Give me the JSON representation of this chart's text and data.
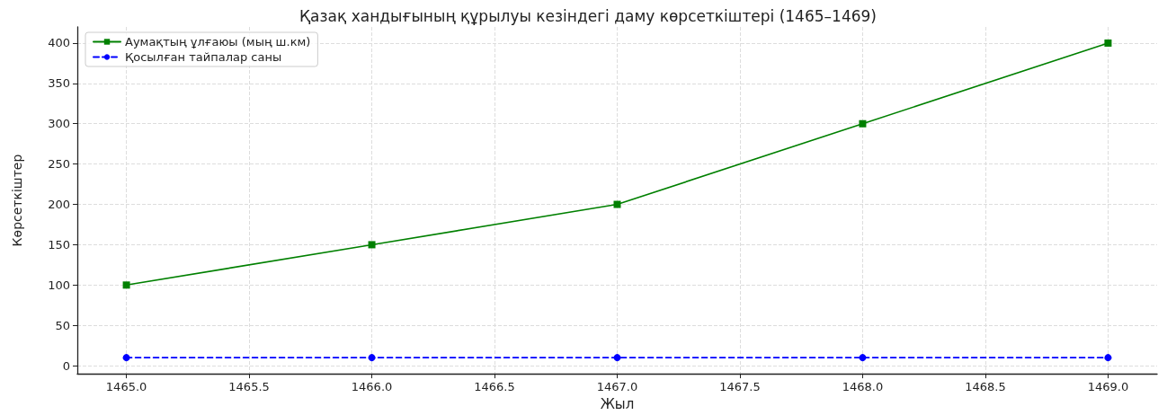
{
  "chart_data": {
    "type": "line",
    "title": "Қазақ хандығының құрылуы кезіндегі даму көрсеткіштері (1465–1469)",
    "xlabel": "Жыл",
    "ylabel": "Көрсеткіштер",
    "x": [
      1465,
      1466,
      1467,
      1468,
      1469
    ],
    "series": [
      {
        "name": "Аумақтың ұлғаюы (мың ш.км)",
        "color": "#008000",
        "values": [
          100,
          150,
          200,
          300,
          400
        ],
        "marker": "square",
        "line_style": "solid"
      },
      {
        "name": "Қосылған тайпалар саны",
        "color": "#0000ff",
        "values": [
          10,
          10,
          10,
          10,
          10
        ],
        "marker": "circle",
        "line_style": "dashed"
      }
    ],
    "xlim": [
      1464.8,
      1469.2
    ],
    "xticks": [
      {
        "value": 1465,
        "label": "1465.0"
      },
      {
        "value": 1465.5,
        "label": "1465.5"
      },
      {
        "value": 1466,
        "label": "1466.0"
      },
      {
        "value": 1466.5,
        "label": "1466.5"
      },
      {
        "value": 1467,
        "label": "1467.0"
      },
      {
        "value": 1467.5,
        "label": "1467.5"
      },
      {
        "value": 1468,
        "label": "1468.0"
      },
      {
        "value": 1468.5,
        "label": "1468.5"
      },
      {
        "value": 1469,
        "label": "1469.0"
      }
    ],
    "ylim": [
      -10,
      420
    ],
    "yticks": [
      0,
      50,
      100,
      150,
      200,
      250,
      300,
      350,
      400
    ],
    "grid": true,
    "legend": "top left"
  }
}
